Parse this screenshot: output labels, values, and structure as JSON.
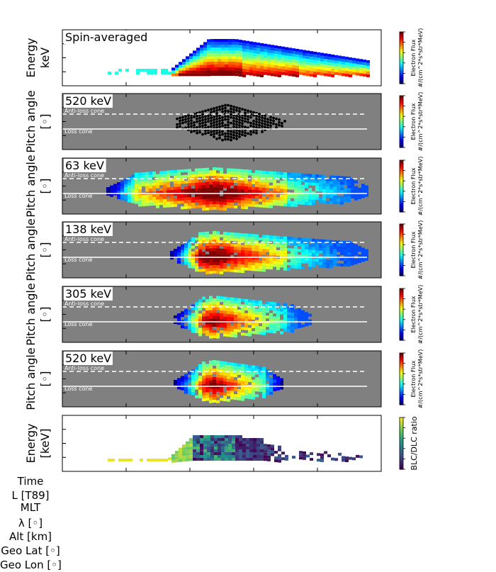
{
  "chart_data": [
    {
      "type": "heatmap",
      "panel_label": "Spin-averaged",
      "ylabel": "Energy\nkeV",
      "colorbar_label": "Electron Flux\n#/(cm^2*s*str*MeV)",
      "lines": []
    },
    {
      "type": "scatter",
      "panel_label": "520 keV",
      "ylabel": "Pitch angle\n[◦]",
      "colorbar_label": "Electron Flux\n#/(cm^2*s*str*MeV)",
      "lines": [
        {
          "name": "Anti-loss cone",
          "style": "dashed"
        },
        {
          "name": "Loss cone",
          "style": "solid"
        }
      ]
    },
    {
      "type": "heatmap",
      "panel_label": "63 keV",
      "ylabel": "Pitch angle\n[◦]",
      "colorbar_label": "Electron Flux\n#/(cm^2*s*str*MeV)",
      "lines": [
        {
          "name": "Anti-loss cone",
          "style": "dashed"
        },
        {
          "name": "Loss cone",
          "style": "solid"
        }
      ]
    },
    {
      "type": "heatmap",
      "panel_label": "138 keV",
      "ylabel": "Pitch angle\n[◦]",
      "colorbar_label": "Electron Flux\n#/(cm^2*s*str*MeV)",
      "lines": [
        {
          "name": "Anti-loss cone",
          "style": "dashed"
        },
        {
          "name": "Loss cone",
          "style": "solid"
        }
      ]
    },
    {
      "type": "heatmap",
      "panel_label": "305 keV",
      "ylabel": "Pitch angle\n[◦]",
      "colorbar_label": "Electron Flux\n#/(cm^2*s*str*MeV)",
      "lines": [
        {
          "name": "Anti-loss cone",
          "style": "dashed"
        },
        {
          "name": "Loss cone",
          "style": "solid"
        }
      ]
    },
    {
      "type": "heatmap",
      "panel_label": "520 keV",
      "ylabel": "Pitch angle\n[◦]",
      "colorbar_label": "Electron Flux\n#/(cm^2*s*str*MeV)",
      "lines": [
        {
          "name": "Anti-loss cone",
          "style": "dashed"
        },
        {
          "name": "Loss cone",
          "style": "solid"
        }
      ]
    },
    {
      "type": "heatmap",
      "panel_label": "",
      "ylabel": "Energy\n[keV]",
      "colorbar_label": "BLC/DLC ratio",
      "lines": []
    }
  ],
  "x_axis_rows": [
    "Time",
    "L [T89]",
    "MLT",
    "λ [◦]",
    "Alt [km]",
    "Geo Lat [◦]",
    "Geo Lon [◦]"
  ],
  "colors": {
    "panel_background_gray": "#808080",
    "jet_low": "#00008f",
    "jet_high": "#800000",
    "ratio_low": "#440154",
    "ratio_high": "#fde725"
  }
}
